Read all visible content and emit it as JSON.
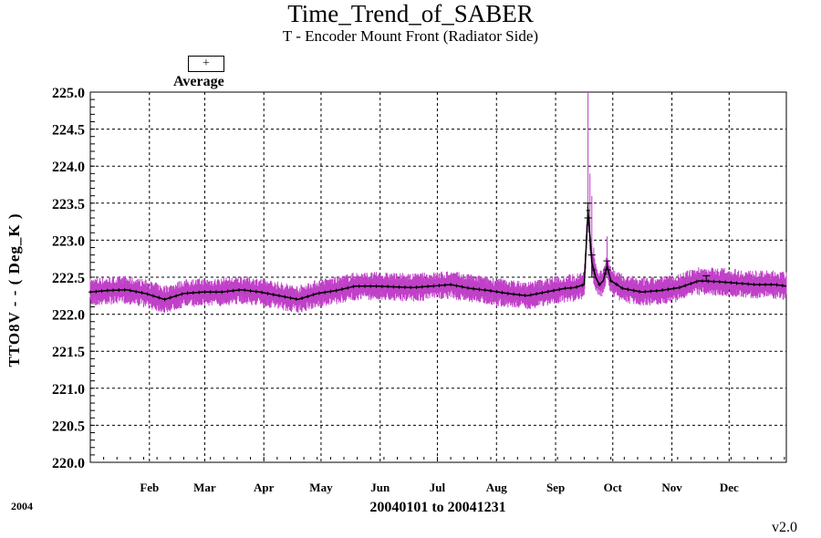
{
  "header": {
    "title": "Time_Trend_of_SABER",
    "subtitle": "T - Encoder Mount Front (Radiator Side)"
  },
  "legend": {
    "symbol": "+",
    "label": "Average"
  },
  "footer": {
    "year": "2004",
    "range": "20040101 to 20041231",
    "version": "v2.0"
  },
  "colors": {
    "raw": "#c040c8",
    "average": "#000000",
    "grid": "#000000"
  },
  "chart_data": {
    "type": "line",
    "title": "Time_Trend_of_SABER",
    "subtitle": "T - Encoder Mount Front (Radiator Side)",
    "ylabel": "TTO8V  - - ( Deg_K )",
    "xlabel": "20040101 to 20041231",
    "ylim": [
      220.0,
      225.0
    ],
    "xlim": [
      1,
      366
    ],
    "yticks": [
      "220.0",
      "220.5",
      "221.0",
      "221.5",
      "222.0",
      "222.5",
      "223.0",
      "223.5",
      "224.0",
      "224.5",
      "225.0"
    ],
    "xticks": [
      {
        "label": "Feb",
        "day": 32
      },
      {
        "label": "Mar",
        "day": 61
      },
      {
        "label": "Apr",
        "day": 92
      },
      {
        "label": "May",
        "day": 122
      },
      {
        "label": "Jun",
        "day": 153
      },
      {
        "label": "Jul",
        "day": 183
      },
      {
        "label": "Aug",
        "day": 214
      },
      {
        "label": "Sep",
        "day": 245
      },
      {
        "label": "Oct",
        "day": 275
      },
      {
        "label": "Nov",
        "day": 306
      },
      {
        "label": "Dec",
        "day": 336
      }
    ],
    "grid": true,
    "legend_position": "top-left",
    "series": [
      {
        "name": "Average",
        "x": [
          1,
          10,
          20,
          30,
          40,
          50,
          60,
          70,
          80,
          90,
          100,
          110,
          120,
          130,
          140,
          150,
          160,
          170,
          180,
          190,
          200,
          210,
          220,
          230,
          240,
          250,
          255,
          260,
          262,
          264,
          266,
          268,
          270,
          272,
          274,
          276,
          280,
          290,
          300,
          310,
          320,
          330,
          340,
          350,
          360,
          366
        ],
        "y": [
          222.3,
          222.32,
          222.33,
          222.28,
          222.2,
          222.28,
          222.3,
          222.3,
          222.33,
          222.3,
          222.25,
          222.2,
          222.28,
          222.32,
          222.38,
          222.38,
          222.37,
          222.36,
          222.38,
          222.4,
          222.35,
          222.32,
          222.28,
          222.25,
          222.3,
          222.35,
          222.36,
          222.4,
          223.4,
          222.7,
          222.5,
          222.4,
          222.45,
          222.65,
          222.45,
          222.42,
          222.35,
          222.3,
          222.32,
          222.36,
          222.45,
          222.44,
          222.42,
          222.4,
          222.4,
          222.38
        ]
      }
    ],
    "error_bars": [
      {
        "x": 262,
        "low": 223.3,
        "high": 223.5
      },
      {
        "x": 264,
        "low": 222.5,
        "high": 222.8
      },
      {
        "x": 272,
        "low": 222.6,
        "high": 222.72
      },
      {
        "x": 324,
        "low": 222.45,
        "high": 222.52
      }
    ],
    "raw_noise": {
      "name": "raw",
      "band": 0.12,
      "spikes": [
        {
          "x": 262,
          "y": 225.0
        },
        {
          "x": 263,
          "y": 223.9
        },
        {
          "x": 264,
          "y": 223.6
        },
        {
          "x": 265,
          "y": 222.9
        },
        {
          "x": 272,
          "y": 223.05
        }
      ]
    }
  }
}
